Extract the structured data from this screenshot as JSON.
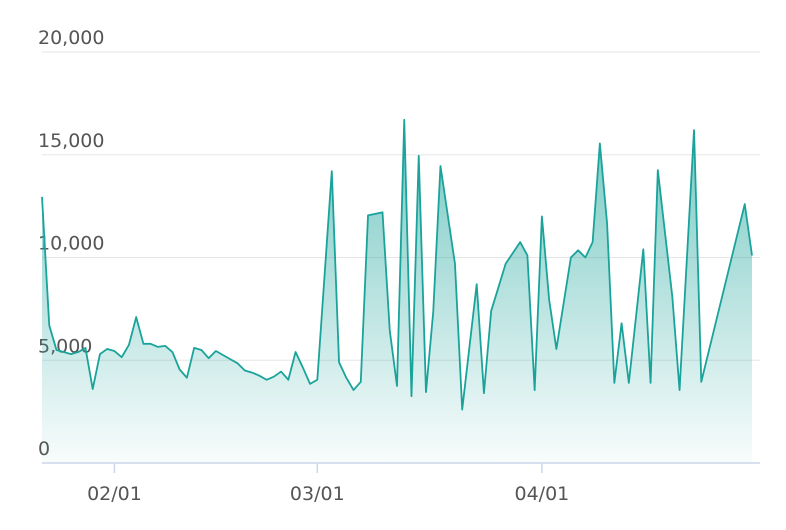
{
  "chart_data": {
    "type": "area",
    "x": [
      "01/22",
      "01/23",
      "01/24",
      "01/25",
      "01/26",
      "01/27",
      "01/28",
      "01/29",
      "01/30",
      "01/31",
      "02/01",
      "02/02",
      "02/03",
      "02/04",
      "02/05",
      "02/06",
      "02/07",
      "02/08",
      "02/09",
      "02/10",
      "02/11",
      "02/12",
      "02/13",
      "02/14",
      "02/15",
      "02/16",
      "02/17",
      "02/18",
      "02/19",
      "02/20",
      "02/21",
      "02/22",
      "02/23",
      "02/24",
      "02/25",
      "02/26",
      "02/27",
      "02/28",
      "03/01",
      "03/03",
      "03/04",
      "03/05",
      "03/06",
      "03/07",
      "03/08",
      "03/10",
      "03/11",
      "03/12",
      "03/13",
      "03/14",
      "03/15",
      "03/16",
      "03/17",
      "03/18",
      "03/20",
      "03/21",
      "03/23",
      "03/24",
      "03/25",
      "03/27",
      "03/29",
      "03/30",
      "03/31",
      "04/01",
      "04/02",
      "04/03",
      "04/05",
      "04/06",
      "04/07",
      "04/08",
      "04/09",
      "04/10",
      "04/11",
      "04/12",
      "04/13",
      "04/15",
      "04/16",
      "04/17",
      "04/19",
      "04/20",
      "04/22",
      "04/23",
      "04/29",
      "04/30"
    ],
    "values": [
      12950,
      6700,
      5500,
      5400,
      5300,
      5400,
      5600,
      3600,
      5300,
      5550,
      5450,
      5150,
      5750,
      7100,
      5800,
      5800,
      5650,
      5700,
      5400,
      4550,
      4150,
      5600,
      5500,
      5100,
      5450,
      5250,
      5050,
      4850,
      4500,
      4400,
      4250,
      4050,
      4200,
      4450,
      4050,
      5400,
      4650,
      3850,
      4050,
      14200,
      4900,
      4150,
      3550,
      3950,
      12050,
      12200,
      6450,
      3750,
      16700,
      3250,
      14950,
      3450,
      7350,
      14450,
      9700,
      2600,
      8700,
      3400,
      7400,
      9700,
      10750,
      10100,
      3550,
      12000,
      7950,
      5550,
      10000,
      10350,
      10000,
      10750,
      15550,
      11650,
      3900,
      6800,
      3900,
      10400,
      3900,
      14250,
      8100,
      3550,
      16200,
      3950,
      12600,
      10100
    ],
    "color": "#1aa39a",
    "xlim": [
      "01/22",
      "04/30"
    ],
    "xticks": [
      "02/01",
      "03/01",
      "04/01"
    ],
    "ylim": [
      0,
      20000
    ],
    "yticks": [
      0,
      {
        "value": 5000,
        "label": "5,000"
      },
      {
        "value": 10000,
        "label": "10,000"
      },
      {
        "value": 15000,
        "label": "15,000"
      },
      {
        "value": 20000,
        "label": "20,000"
      }
    ],
    "grid": true
  }
}
